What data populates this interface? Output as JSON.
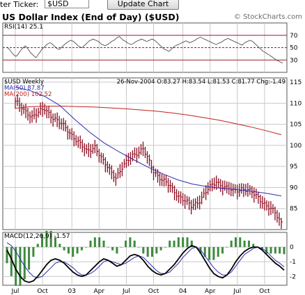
{
  "toolbar": {
    "ticker_label": "ter Ticker:",
    "ticker_value": "$USD",
    "update_button": "Update Chart"
  },
  "header": {
    "title": "US Dollar Index (End of Day) ($USD)",
    "watermark": "© StockCharts.com"
  },
  "colors": {
    "price_bar": "#8b0a1e",
    "ma50": "#2b2bb0",
    "ma200": "#c0201c",
    "rsi_line": "#3a3a3a",
    "rsi_levels": "#9c1a2a",
    "grid": "#c8c8c8",
    "macd_line": "#000000",
    "signal_line": "#2b2bb0",
    "histogram": "#3d8a3d"
  },
  "chart_data": [
    {
      "type": "line",
      "name": "rsi",
      "label": "RSI(14) 25.1",
      "ylim": [
        10,
        90
      ],
      "levels": [
        70,
        50,
        30
      ],
      "level_labels": [
        "70",
        "50",
        "30"
      ],
      "values": [
        51,
        49,
        47,
        44,
        41,
        39,
        37,
        36,
        38,
        41,
        44,
        47,
        49,
        51,
        53,
        51,
        48,
        45,
        42,
        40,
        38,
        36,
        34,
        36,
        39,
        42,
        45,
        48,
        50,
        52,
        54,
        56,
        57,
        58,
        57,
        55,
        53,
        51,
        49,
        48,
        47,
        49,
        51,
        53,
        55,
        57,
        58,
        60,
        61,
        62,
        61,
        60,
        58,
        56,
        54,
        52,
        51,
        50,
        51,
        53,
        55,
        57,
        59,
        61,
        62,
        63,
        64,
        63,
        62,
        61,
        60,
        58,
        56,
        55,
        54,
        53,
        54,
        55,
        57,
        58,
        60,
        61,
        62,
        64,
        66,
        67,
        68,
        66,
        64,
        62,
        61,
        60,
        58,
        57,
        56,
        55,
        56,
        57,
        59,
        60,
        61,
        62,
        63,
        64,
        63,
        62,
        61,
        60,
        61,
        62,
        63,
        64,
        63,
        62,
        60,
        58,
        56,
        54,
        52,
        50,
        48,
        47,
        46,
        45,
        44,
        46,
        48,
        50,
        52,
        53,
        54,
        55,
        56,
        57,
        58,
        59,
        60,
        61,
        60,
        59,
        58,
        59,
        60,
        61,
        62,
        64,
        65,
        66,
        67,
        66,
        65,
        64,
        63,
        62,
        61,
        60,
        59,
        58,
        57,
        56,
        55,
        56,
        57,
        58,
        59,
        60,
        62,
        63,
        64,
        65,
        64,
        63,
        62,
        61,
        60,
        59,
        58,
        57,
        56,
        55,
        54,
        56,
        58,
        59,
        60,
        61,
        62,
        61,
        60,
        58,
        56,
        54,
        52,
        50,
        48,
        46,
        44,
        43,
        42,
        40,
        39,
        38,
        36,
        35,
        33,
        32,
        30,
        29,
        28,
        27,
        26,
        25.1
      ]
    },
    {
      "type": "line",
      "name": "price",
      "ticker_label": "$USD Weekly",
      "stats": "26-Nov-2004 O:83.27 H:83.54 L:81.53 C:81.77 Chg:-1.49",
      "ma50_label": "MA(50) 87.87",
      "ma200_label": "MA(200) 102.52",
      "ylim": [
        80,
        116
      ],
      "y_ticks": [
        85,
        90,
        95,
        100,
        105,
        110,
        115
      ],
      "x_tick_labels": [
        "Jul",
        "Oct",
        "03",
        "Apr",
        "Jul",
        "Oct",
        "04",
        "Apr",
        "Jul",
        "Oct"
      ],
      "x_tick_weeks": [
        0,
        13,
        27,
        40,
        53,
        66,
        80,
        93,
        106,
        119
      ],
      "anchors_week": [
        0,
        4,
        8,
        14,
        22,
        28,
        34,
        38,
        42,
        48,
        52,
        56,
        61,
        66,
        70,
        74,
        76,
        78,
        84,
        88,
        92,
        96,
        100,
        104,
        108,
        112,
        116,
        120,
        124,
        127
      ],
      "anchors_close": [
        110.5,
        108.2,
        107,
        108.5,
        105,
        102,
        98.5,
        99.8,
        96,
        92.5,
        95.2,
        97.8,
        99,
        94,
        91.8,
        90.2,
        89.1,
        88,
        85.5,
        87,
        89.5,
        91.5,
        90,
        89.2,
        89.8,
        89,
        87.8,
        85.5,
        84,
        81.8
      ],
      "ma50_values": [
        113.8,
        113,
        111.6,
        109.5,
        106.2,
        103.2,
        100.6,
        98.5,
        96.6,
        94.8,
        93.2,
        91.8,
        90.8,
        90.2,
        89.8,
        89.5,
        89.1,
        88.6,
        88
      ],
      "ma200_values": [
        108.8,
        109.2,
        109.3,
        109.3,
        109.2,
        109.1,
        108.9,
        108.7,
        108.4,
        108.1,
        107.7,
        107.2,
        106.6,
        106,
        105.2,
        104.4,
        103.5,
        102.52
      ]
    },
    {
      "type": "line",
      "name": "macd",
      "label": "MACD(12,26,9) -1.57",
      "ylim": [
        -2.6,
        1.0
      ],
      "y_ticks": [
        0,
        -1,
        -2
      ],
      "macd_values": [
        -0.2,
        -0.8,
        -1.5,
        -2.0,
        -2.3,
        -2.4,
        -2.3,
        -2.0,
        -1.6,
        -1.2,
        -0.9,
        -0.8,
        -0.9,
        -1.1,
        -1.4,
        -1.7,
        -1.9,
        -2.0,
        -1.9,
        -1.6,
        -1.3,
        -1.0,
        -0.8,
        -0.9,
        -1.1,
        -1.3,
        -1.2,
        -0.9,
        -0.6,
        -0.5,
        -0.6,
        -0.9,
        -1.3,
        -1.6,
        -1.8,
        -1.9,
        -1.8,
        -1.5,
        -1.2,
        -0.8,
        -0.4,
        -0.1,
        0.1,
        0.0,
        -0.4,
        -0.9,
        -1.4,
        -1.8,
        -2.0,
        -2.1,
        -1.9,
        -1.5,
        -1.0,
        -0.6,
        -0.3,
        -0.1,
        0.0,
        0.0,
        -0.2,
        -0.5,
        -0.8,
        -1.1,
        -1.3,
        -1.57
      ],
      "signal_values": [
        0.3,
        0.1,
        -0.3,
        -0.8,
        -1.3,
        -1.7,
        -2.0,
        -2.1,
        -2.0,
        -1.7,
        -1.4,
        -1.1,
        -1.0,
        -1.0,
        -1.2,
        -1.4,
        -1.7,
        -1.9,
        -1.9,
        -1.8,
        -1.6,
        -1.3,
        -1.0,
        -0.9,
        -1.0,
        -1.1,
        -1.2,
        -1.1,
        -0.9,
        -0.7,
        -0.6,
        -0.7,
        -1.0,
        -1.3,
        -1.6,
        -1.8,
        -1.8,
        -1.7,
        -1.4,
        -1.1,
        -0.7,
        -0.4,
        -0.1,
        0.0,
        -0.2,
        -0.6,
        -1.0,
        -1.4,
        -1.7,
        -1.9,
        -1.9,
        -1.7,
        -1.3,
        -0.9,
        -0.5,
        -0.3,
        -0.1,
        0.0,
        -0.1,
        -0.3,
        -0.6,
        -0.9,
        -1.1,
        -1.35
      ]
    }
  ]
}
